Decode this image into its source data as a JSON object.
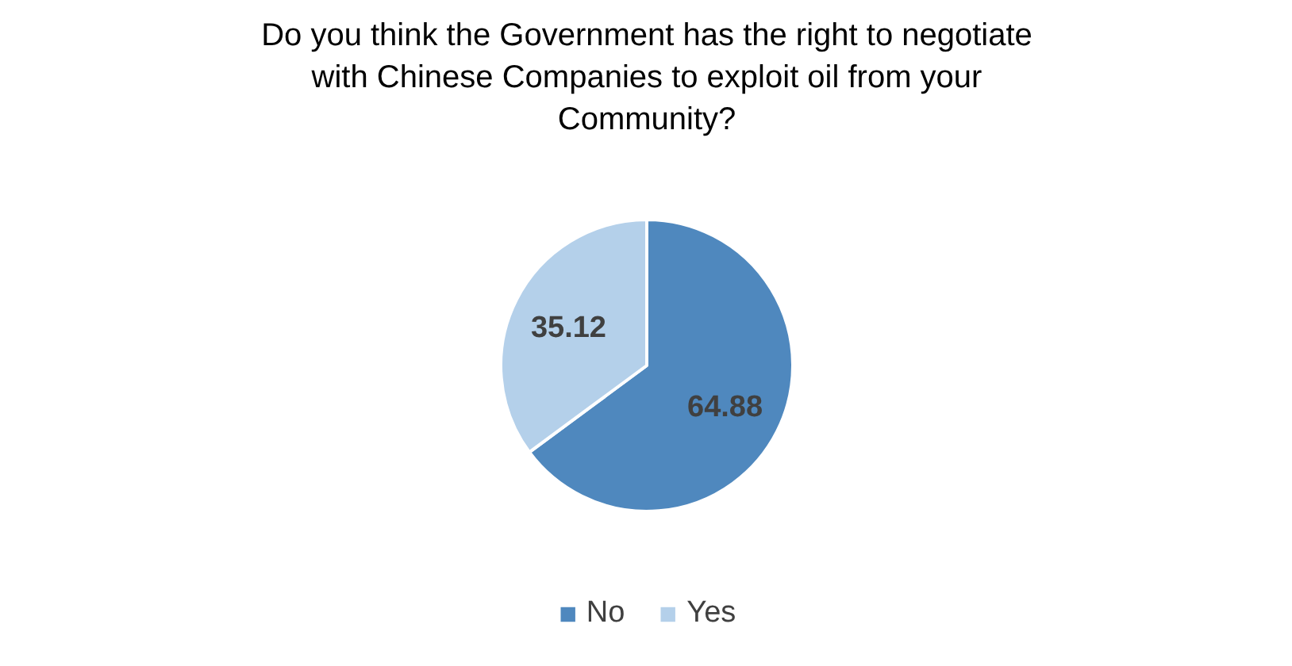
{
  "chart_data": {
    "type": "pie",
    "title": "Do you think the Government has the right to negotiate\nwith Chinese Companies to exploit oil from your\nCommunity?",
    "categories": [
      "No",
      "Yes"
    ],
    "values": [
      64.88,
      35.12
    ],
    "colors": [
      "#4f88be",
      "#b4d0ea"
    ],
    "data_labels": true,
    "legend": "bottom"
  }
}
